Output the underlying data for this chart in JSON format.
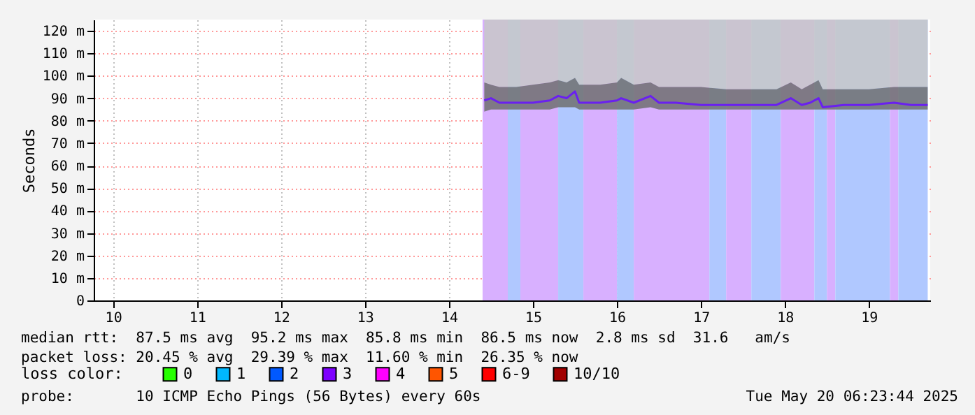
{
  "chart_data": {
    "type": "line",
    "ylabel": "Seconds",
    "xlim": [
      9.77,
      19.73
    ],
    "xticks": [
      10,
      11,
      12,
      13,
      14,
      15,
      16,
      17,
      18,
      19
    ],
    "ylim": [
      0,
      125
    ],
    "yticks": [
      0,
      {
        "value": 10,
        "label": "10 m"
      },
      {
        "value": 20,
        "label": "20 m"
      },
      {
        "value": 30,
        "label": "30 m"
      },
      {
        "value": 40,
        "label": "40 m"
      },
      {
        "value": 50,
        "label": "50 m"
      },
      {
        "value": 60,
        "label": "60 m"
      },
      {
        "value": 70,
        "label": "70 m"
      },
      {
        "value": 80,
        "label": "80 m"
      },
      {
        "value": 90,
        "label": "90 m"
      },
      {
        "value": 100,
        "label": "100 m"
      },
      {
        "value": 110,
        "label": "110 m"
      },
      {
        "value": 120,
        "label": "120 m"
      }
    ],
    "grid": true,
    "legend": "bottom",
    "legend_title": "loss color:",
    "x": [
      14.42,
      14.5,
      14.6,
      14.8,
      15.0,
      15.2,
      15.3,
      15.4,
      15.5,
      15.55,
      15.8,
      16.0,
      16.05,
      16.2,
      16.4,
      16.5,
      16.7,
      17.0,
      17.3,
      17.6,
      17.9,
      18.07,
      18.2,
      18.3,
      18.4,
      18.45,
      18.7,
      19.0,
      19.3,
      19.5,
      19.7
    ],
    "series": [
      {
        "color": "#c8c8c8",
        "values": [
          null,
          null,
          null,
          null,
          null,
          null,
          null,
          null,
          null,
          null,
          null,
          null,
          null,
          null,
          null,
          null,
          null,
          null,
          null,
          null,
          null,
          null,
          null,
          null,
          null,
          null,
          null,
          null,
          null,
          null,
          null
        ],
        "lower": [
          97,
          96,
          95,
          95,
          96,
          97,
          98,
          97,
          99,
          96,
          96,
          97,
          99,
          96,
          97,
          95,
          95,
          95,
          94,
          94,
          94,
          97,
          94,
          96,
          98,
          94,
          94,
          94,
          95,
          95,
          95
        ],
        "upper": [
          125,
          125,
          125,
          125,
          125,
          125,
          125,
          125,
          125,
          125,
          125,
          125,
          125,
          125,
          125,
          125,
          125,
          125,
          125,
          125,
          125,
          125,
          125,
          125,
          125,
          125,
          125,
          125,
          125,
          125,
          125
        ]
      },
      {
        "color": "#707070",
        "values": [
          null,
          null,
          null,
          null,
          null,
          null,
          null,
          null,
          null,
          null,
          null,
          null,
          null,
          null,
          null,
          null,
          null,
          null,
          null,
          null,
          null,
          null,
          null,
          null,
          null,
          null,
          null,
          null,
          null,
          null,
          null
        ],
        "lower": [
          84,
          85,
          85,
          85,
          85,
          85,
          86,
          86,
          86,
          85,
          85,
          85,
          85,
          85,
          86,
          85,
          85,
          85,
          85,
          85,
          85,
          85,
          85,
          85,
          85,
          85,
          85,
          85,
          85,
          85,
          85
        ],
        "upper": [
          97,
          96,
          95,
          95,
          96,
          97,
          98,
          97,
          99,
          96,
          96,
          97,
          99,
          96,
          97,
          95,
          95,
          95,
          94,
          94,
          94,
          97,
          94,
          96,
          98,
          94,
          94,
          94,
          95,
          95,
          95
        ]
      },
      {
        "color": "#6a20f0",
        "values": [
          89,
          90,
          88,
          88,
          88,
          89,
          91,
          90,
          93,
          88,
          88,
          89,
          90,
          88,
          91,
          88,
          88,
          87,
          87,
          87,
          87,
          90,
          87,
          88,
          90,
          86,
          87,
          87,
          88,
          87,
          87
        ]
      },
      {
        "name": "0",
        "color": "#26ff00",
        "values": [
          null,
          null,
          null,
          null,
          null,
          null,
          null,
          null,
          null,
          null,
          null,
          null,
          null,
          null,
          null,
          null,
          null,
          null,
          null,
          null,
          null,
          null,
          null,
          null,
          null,
          null,
          null,
          null,
          null,
          null,
          null
        ]
      },
      {
        "name": "1",
        "color": "#00b8ff",
        "values": [
          null,
          null,
          null,
          null,
          null,
          null,
          null,
          null,
          null,
          null,
          null,
          null,
          null,
          null,
          null,
          null,
          null,
          null,
          null,
          null,
          null,
          null,
          null,
          null,
          null,
          null,
          null,
          null,
          null,
          null,
          null
        ]
      },
      {
        "name": "2",
        "color": "#0059ff",
        "values": [
          null,
          null,
          null,
          null,
          null,
          null,
          null,
          null,
          null,
          null,
          null,
          null,
          null,
          null,
          null,
          null,
          null,
          null,
          null,
          null,
          null,
          null,
          null,
          null,
          null,
          null,
          null,
          null,
          null,
          null,
          null
        ]
      },
      {
        "name": "3",
        "color": "#7e00ff",
        "values": [
          null,
          null,
          null,
          null,
          null,
          null,
          null,
          null,
          null,
          null,
          null,
          null,
          null,
          null,
          null,
          null,
          null,
          null,
          null,
          null,
          null,
          null,
          null,
          null,
          null,
          null,
          null,
          null,
          null,
          null,
          null
        ]
      },
      {
        "name": "4",
        "color": "#ff00ff",
        "values": [
          null,
          null,
          null,
          null,
          null,
          null,
          null,
          null,
          null,
          null,
          null,
          null,
          null,
          null,
          null,
          null,
          null,
          null,
          null,
          null,
          null,
          null,
          null,
          null,
          null,
          null,
          null,
          null,
          null,
          null,
          null
        ]
      },
      {
        "name": "5",
        "color": "#ff5500",
        "values": [
          null,
          null,
          null,
          null,
          null,
          null,
          null,
          null,
          null,
          null,
          null,
          null,
          null,
          null,
          null,
          null,
          null,
          null,
          null,
          null,
          null,
          null,
          null,
          null,
          null,
          null,
          null,
          null,
          null,
          null,
          null
        ]
      },
      {
        "name": "6-9",
        "color": "#ff0000",
        "values": [
          null,
          null,
          null,
          null,
          null,
          null,
          null,
          null,
          null,
          null,
          null,
          null,
          null,
          null,
          null,
          null,
          null,
          null,
          null,
          null,
          null,
          null,
          null,
          null,
          null,
          null,
          null,
          null,
          null,
          null,
          null
        ]
      },
      {
        "name": "10/10",
        "color": "#a10000",
        "values": [
          null,
          null,
          null,
          null,
          null,
          null,
          null,
          null,
          null,
          null,
          null,
          null,
          null,
          null,
          null,
          null,
          null,
          null,
          null,
          null,
          null,
          null,
          null,
          null,
          null,
          null,
          null,
          null,
          null,
          null,
          null
        ]
      }
    ],
    "bands": [
      {
        "axis": "x",
        "from": 14.4,
        "to": 14.7,
        "color": "#d8b0ff"
      },
      {
        "axis": "x",
        "from": 14.7,
        "to": 14.85,
        "color": "#b0c8ff"
      },
      {
        "axis": "x",
        "from": 14.85,
        "to": 15.3,
        "color": "#d8b0ff"
      },
      {
        "axis": "x",
        "from": 15.3,
        "to": 15.6,
        "color": "#b0c8ff"
      },
      {
        "axis": "x",
        "from": 15.6,
        "to": 16.0,
        "color": "#d8b0ff"
      },
      {
        "axis": "x",
        "from": 16.0,
        "to": 16.2,
        "color": "#b0c8ff"
      },
      {
        "axis": "x",
        "from": 16.2,
        "to": 17.1,
        "color": "#d8b0ff"
      },
      {
        "axis": "x",
        "from": 17.1,
        "to": 17.3,
        "color": "#b0c8ff"
      },
      {
        "axis": "x",
        "from": 17.3,
        "to": 17.6,
        "color": "#d8b0ff"
      },
      {
        "axis": "x",
        "from": 17.6,
        "to": 17.95,
        "color": "#b0c8ff"
      },
      {
        "axis": "x",
        "from": 17.95,
        "to": 18.35,
        "color": "#d8b0ff"
      },
      {
        "axis": "x",
        "from": 18.35,
        "to": 18.5,
        "color": "#b0c8ff"
      },
      {
        "axis": "x",
        "from": 18.5,
        "to": 18.6,
        "color": "#d8b0ff"
      },
      {
        "axis": "x",
        "from": 18.6,
        "to": 19.25,
        "color": "#b0c8ff"
      },
      {
        "axis": "x",
        "from": 19.25,
        "to": 19.35,
        "color": "#d8b0ff"
      },
      {
        "axis": "x",
        "from": 19.35,
        "to": 19.7,
        "color": "#b0c8ff"
      }
    ],
    "annotations": [
      "median rtt:  87.5 ms avg  95.2 ms max  85.8 ms min  86.5 ms now  2.8 ms sd  31.6   am/s",
      "packet loss: 20.45 % avg  29.39 % max  11.60 % min  26.35 % now",
      "probe:       10 ICMP Echo Pings (56 Bytes) every 60s",
      "Tue May 20 06:23:44 2025"
    ]
  }
}
